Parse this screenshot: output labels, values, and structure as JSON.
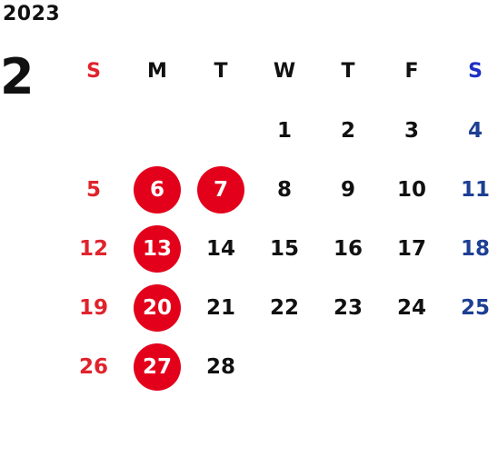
{
  "calendar": {
    "year": "2023",
    "month": "2",
    "weekdays": [
      "S",
      "M",
      "T",
      "W",
      "T",
      "F",
      "S"
    ],
    "colors": {
      "sunday": "#e0232c",
      "saturday": "#1d3f94",
      "saturday_header": "#1f2fc6",
      "weekday": "#111111",
      "highlight": "#e3001b"
    },
    "weeks": [
      [
        "",
        "",
        "",
        "1",
        "2",
        "3",
        "4"
      ],
      [
        "5",
        "6",
        "7",
        "8",
        "9",
        "10",
        "11"
      ],
      [
        "12",
        "13",
        "14",
        "15",
        "16",
        "17",
        "18"
      ],
      [
        "19",
        "20",
        "21",
        "22",
        "23",
        "24",
        "25"
      ],
      [
        "26",
        "27",
        "28",
        "",
        "",
        "",
        ""
      ]
    ],
    "highlighted_days": [
      "6",
      "7",
      "13",
      "20",
      "27"
    ]
  }
}
